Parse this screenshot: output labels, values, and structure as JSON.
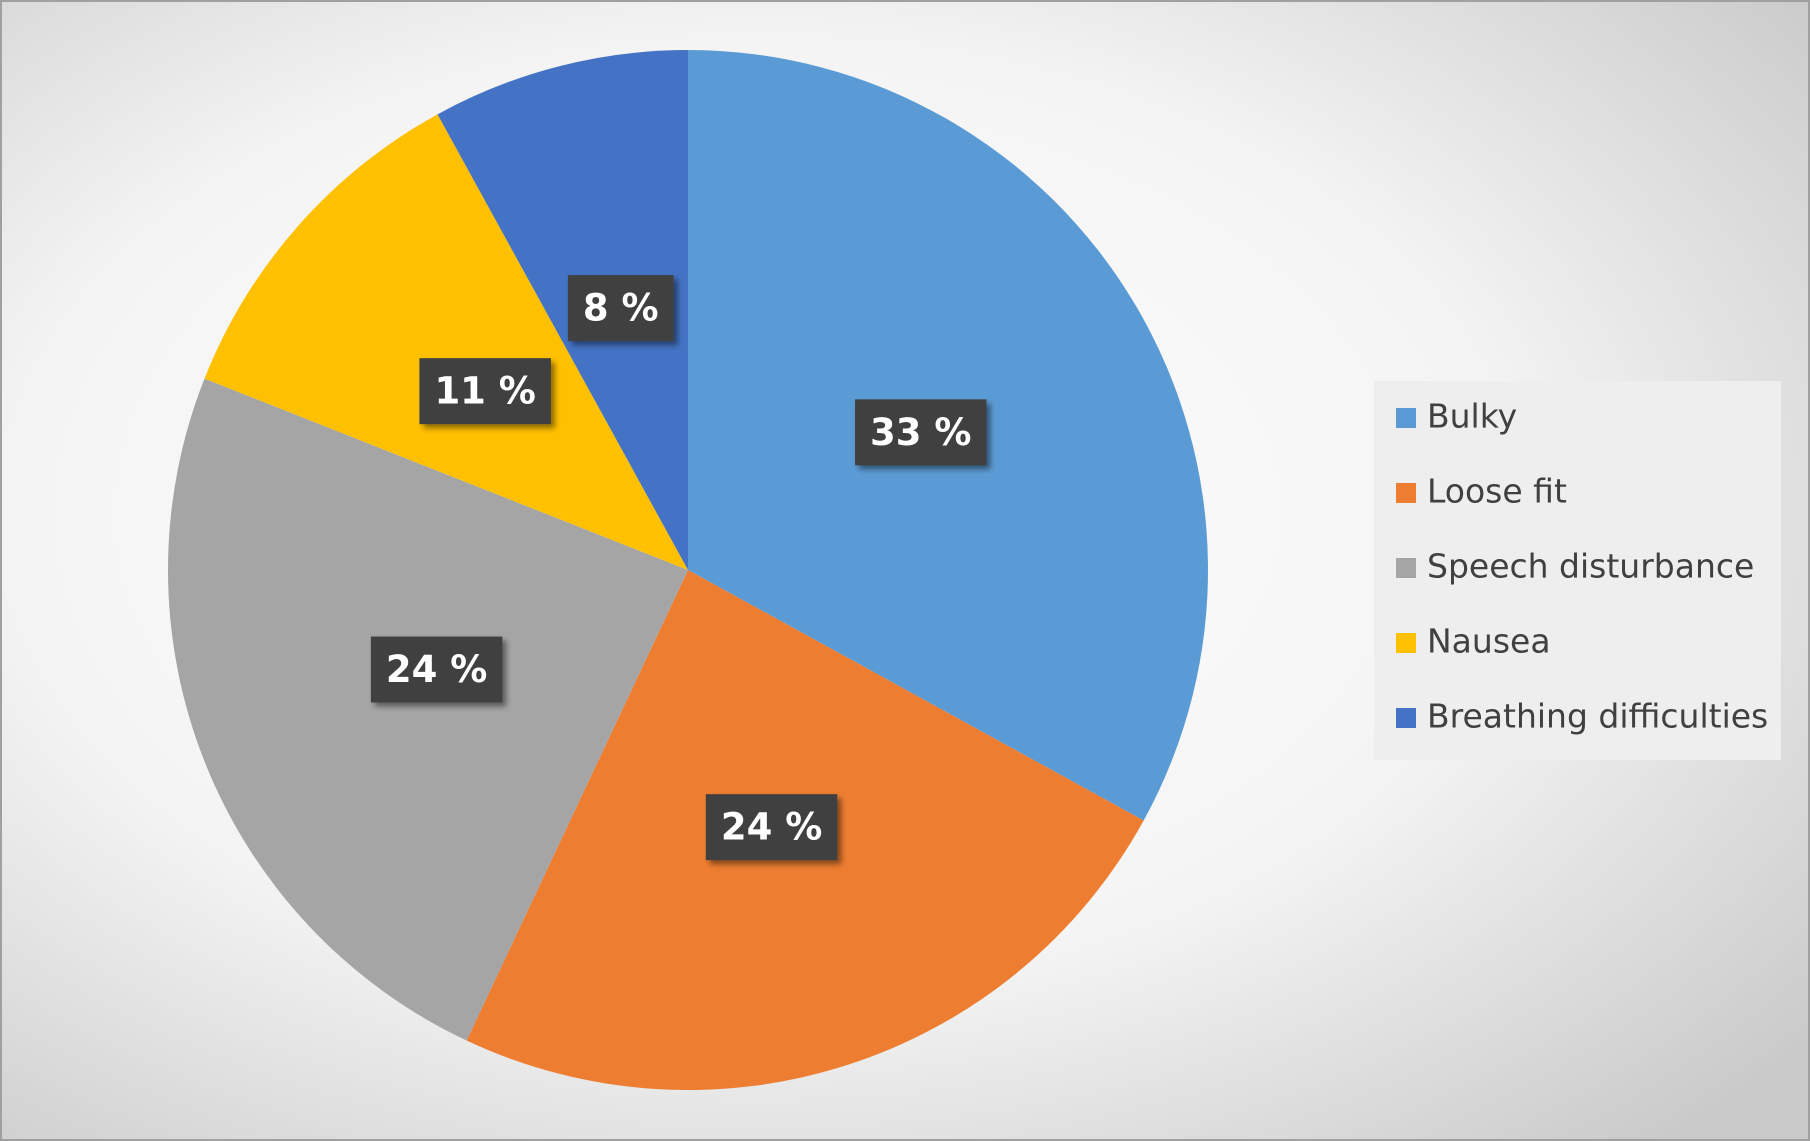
{
  "chart_data": {
    "type": "pie",
    "categories": [
      "Bulky",
      "Loose fit",
      "Speech disturbance",
      "Nausea",
      "Breathing difficulties"
    ],
    "values": [
      33,
      24,
      24,
      11,
      8
    ],
    "value_labels": [
      "33 %",
      "24 %",
      "24 %",
      "11 %",
      "8 %"
    ],
    "colors": [
      "#5b9bd5",
      "#ed7d31",
      "#a5a5a5",
      "#ffc000",
      "#4472c4"
    ],
    "legend": "right"
  }
}
